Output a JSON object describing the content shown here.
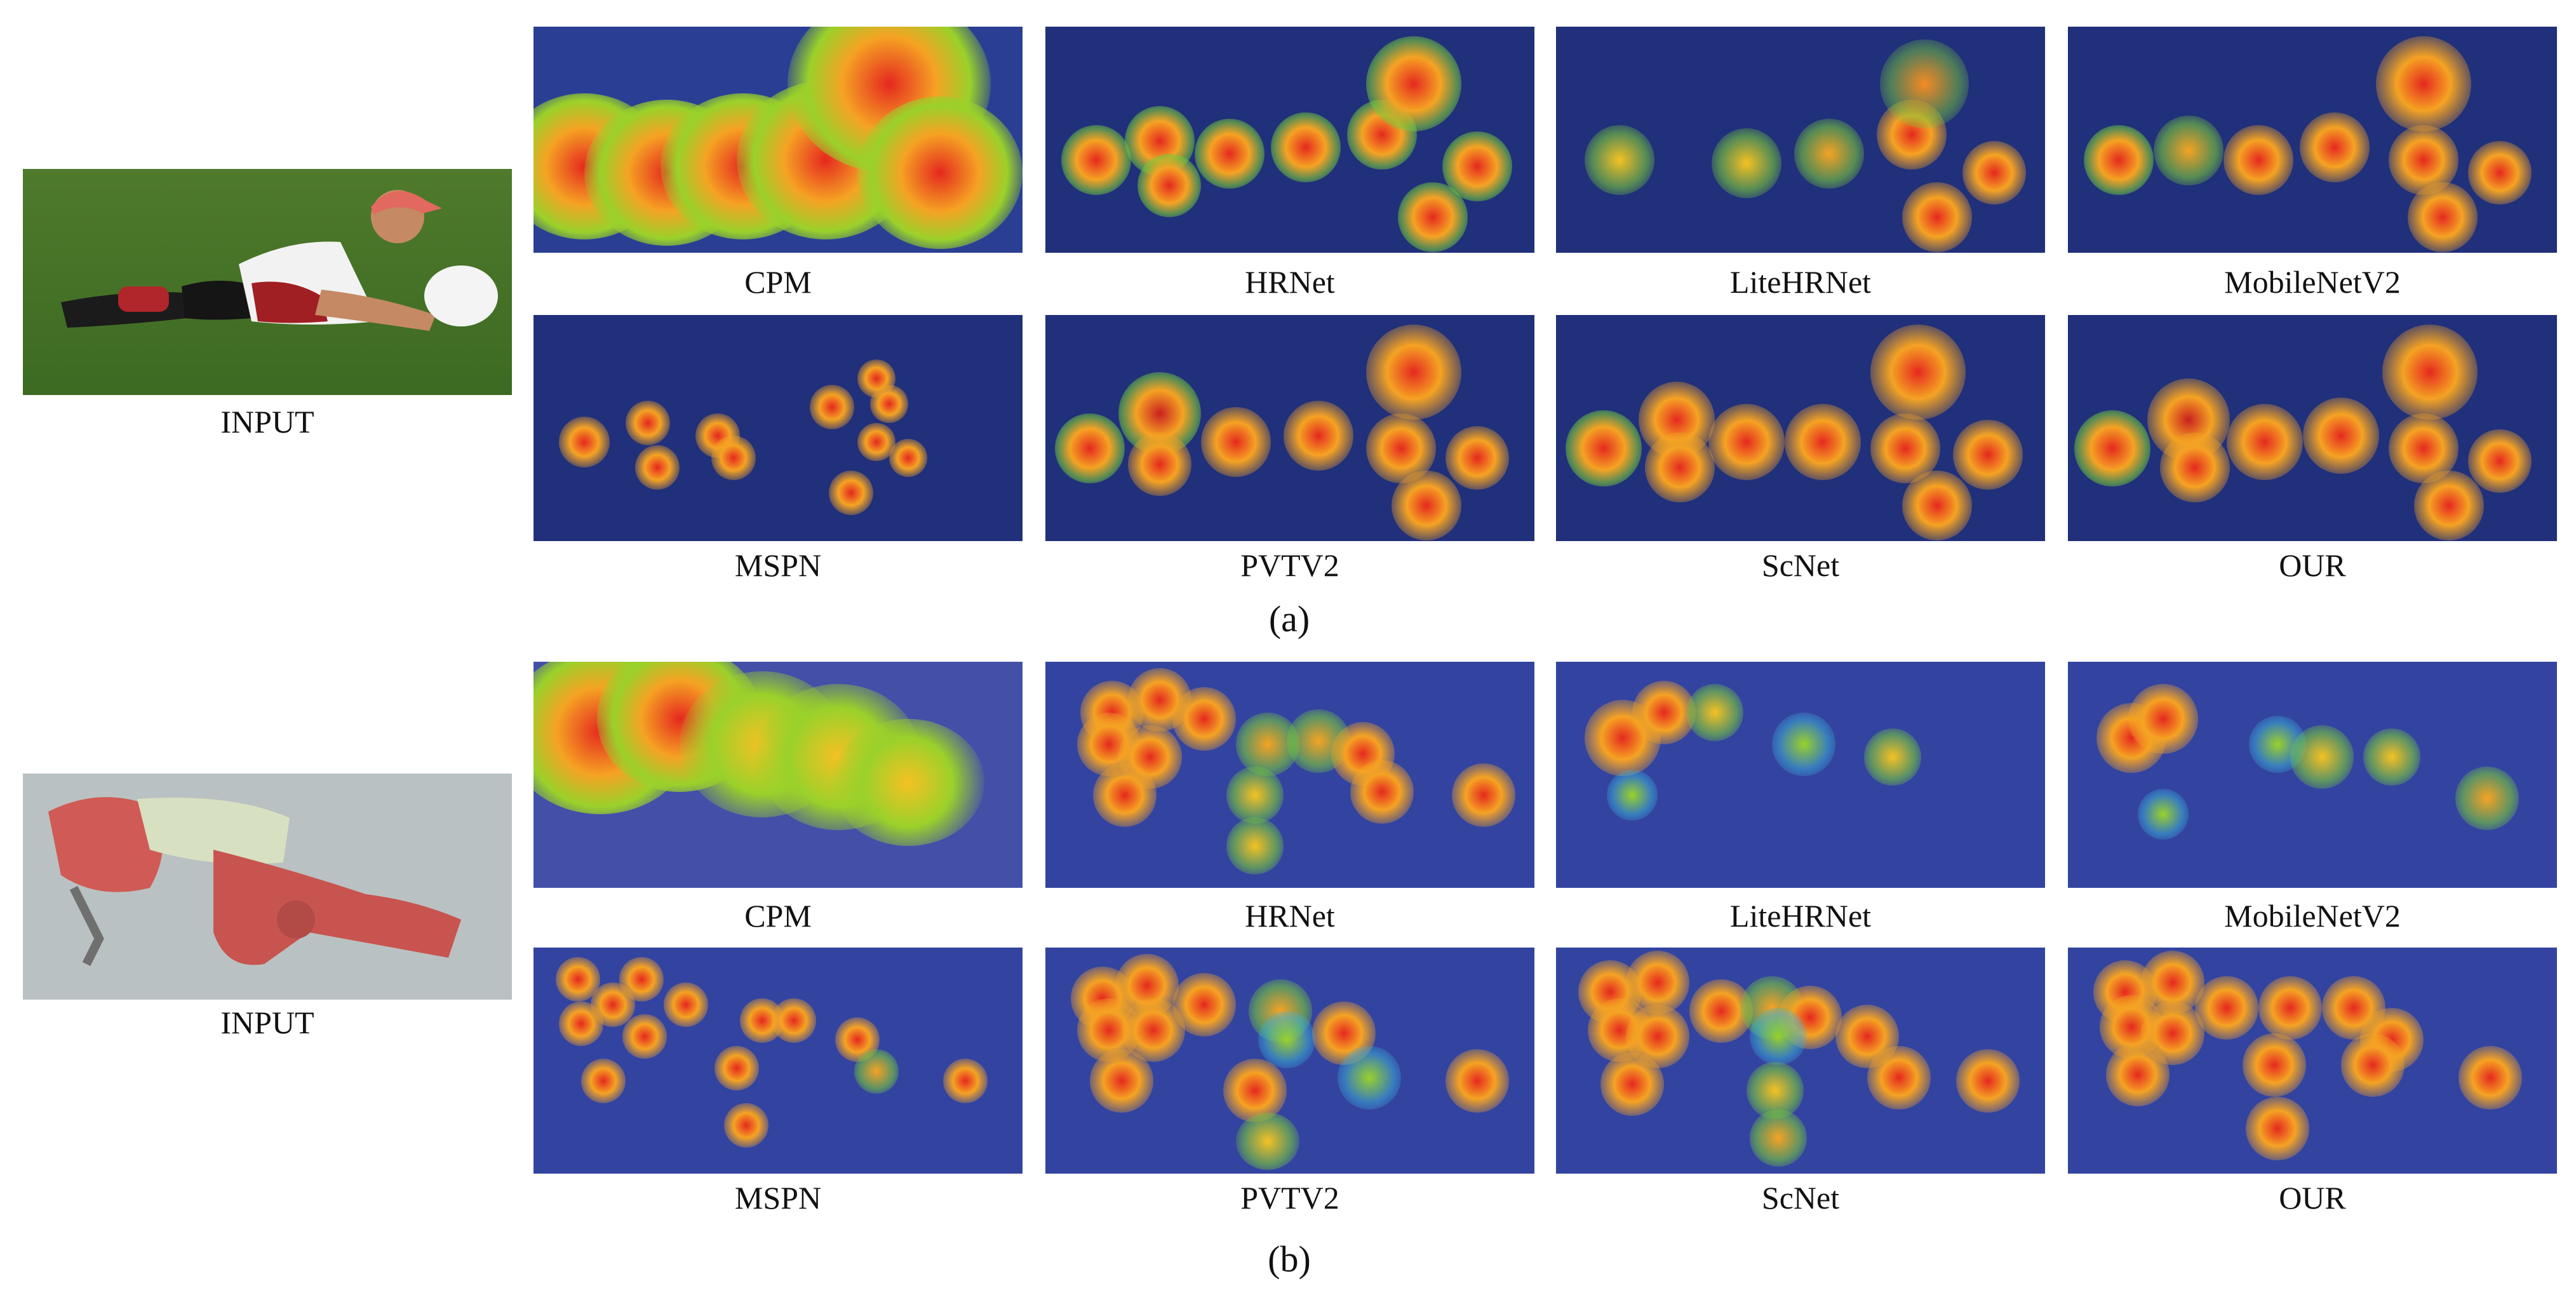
{
  "figure": {
    "sections": [
      {
        "caption": "(a)",
        "input_label": "INPUT",
        "top_row": [
          "CPM",
          "HRNet",
          "LiteHRNet",
          "MobileNetV2"
        ],
        "bottom_row": [
          "MSPN",
          "PVTV2",
          "ScNet",
          "OUR"
        ]
      },
      {
        "caption": "(b)",
        "input_label": "INPUT",
        "top_row": [
          "CPM",
          "HRNet",
          "LiteHRNet",
          "MobileNetV2"
        ],
        "bottom_row": [
          "MSPN",
          "PVTV2",
          "ScNet",
          "OUR"
        ]
      }
    ]
  }
}
